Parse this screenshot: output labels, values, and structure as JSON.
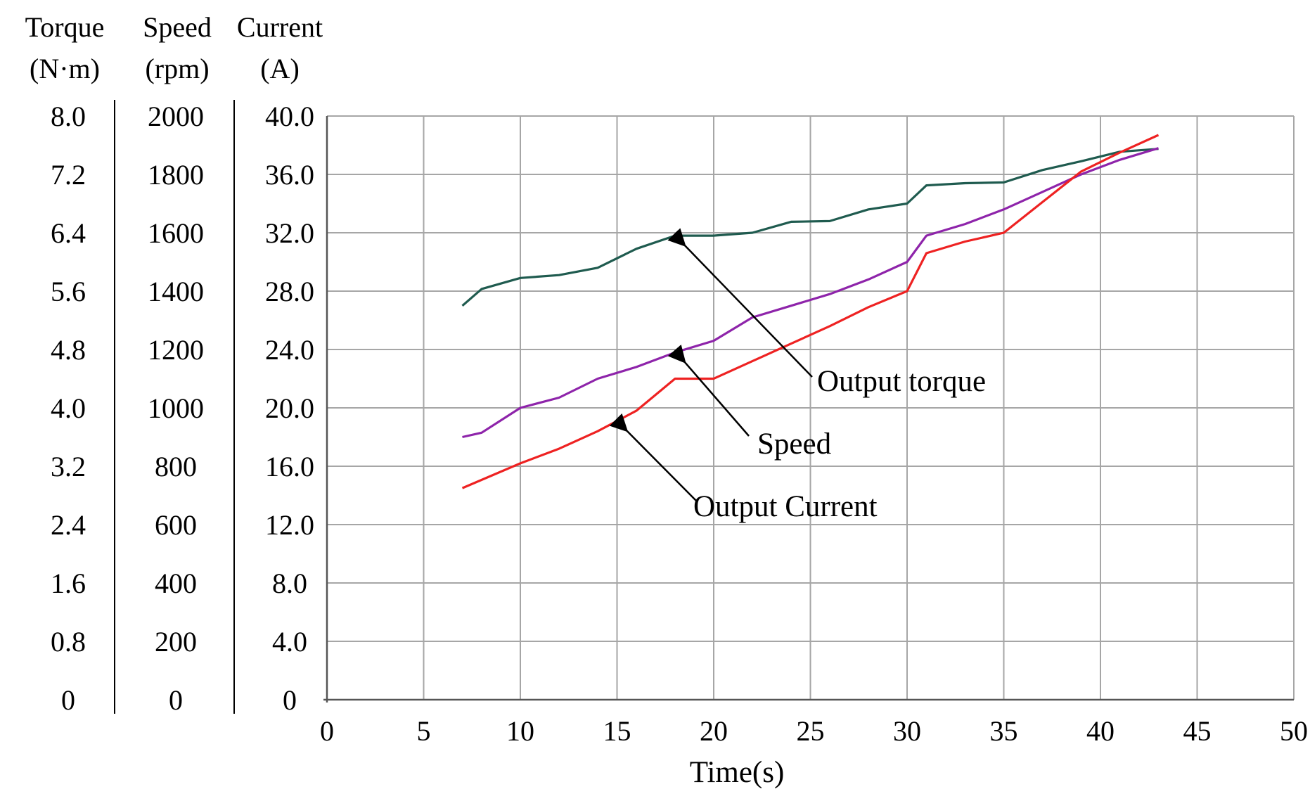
{
  "chart_data": {
    "type": "line",
    "xlabel": "Time(s)",
    "x_ticks": [
      "0",
      "5",
      "10",
      "15",
      "20",
      "25",
      "30",
      "35",
      "40",
      "45",
      "50"
    ],
    "xlim": [
      0,
      50
    ],
    "grid": true,
    "y_axes": [
      {
        "key": "torque",
        "label_line1": "Torque",
        "label_line2": "(N·m)",
        "ticks": [
          "8.0",
          "7.2",
          "6.4",
          "5.6",
          "4.8",
          "4.0",
          "3.2",
          "2.4",
          "1.6",
          "0.8",
          "0"
        ],
        "ylim": [
          0,
          8.0
        ]
      },
      {
        "key": "speed",
        "label_line1": "Speed",
        "label_line2": "(rpm)",
        "ticks": [
          "2000",
          "1800",
          "1600",
          "1400",
          "1200",
          "1000",
          "800",
          "600",
          "400",
          "200",
          "0"
        ],
        "ylim": [
          0,
          2000
        ]
      },
      {
        "key": "current",
        "label_line1": "Current",
        "label_line2": "(A)",
        "ticks": [
          "40.0",
          "36.0",
          "32.0",
          "28.0",
          "24.0",
          "20.0",
          "16.0",
          "12.0",
          "8.0",
          "4.0",
          "0"
        ],
        "ylim": [
          0,
          40.0
        ]
      }
    ],
    "series": [
      {
        "name": "Output torque",
        "axis": "torque",
        "color": "#1f5b4f",
        "x": [
          7,
          8,
          10,
          12,
          14,
          16,
          18,
          20,
          22,
          24,
          26,
          28,
          30,
          31,
          33,
          35,
          37,
          39,
          41,
          43
        ],
        "y": [
          5.4,
          5.63,
          5.78,
          5.82,
          5.92,
          6.18,
          6.36,
          6.36,
          6.4,
          6.55,
          6.56,
          6.72,
          6.8,
          7.05,
          7.08,
          7.09,
          7.26,
          7.38,
          7.51,
          7.55
        ]
      },
      {
        "name": "Speed",
        "axis": "speed",
        "color": "#8e24aa",
        "x": [
          7,
          8,
          10,
          12,
          14,
          16,
          18,
          20,
          22,
          24,
          26,
          28,
          30,
          31,
          33,
          35,
          37,
          39,
          41,
          43
        ],
        "y": [
          900,
          915,
          1000,
          1035,
          1100,
          1140,
          1190,
          1230,
          1310,
          1350,
          1390,
          1440,
          1500,
          1590,
          1630,
          1680,
          1740,
          1800,
          1850,
          1890
        ]
      },
      {
        "name": "Output Current",
        "axis": "current",
        "color": "#ee2222",
        "x": [
          7,
          10,
          12,
          14,
          16,
          18,
          20,
          22,
          24,
          26,
          28,
          30,
          31,
          33,
          35,
          37,
          39,
          41,
          43
        ],
        "y": [
          14.5,
          16.2,
          17.2,
          18.4,
          19.8,
          22.0,
          22.0,
          23.2,
          24.4,
          25.6,
          26.9,
          28.0,
          30.6,
          31.4,
          32.0,
          34.1,
          36.2,
          37.5,
          38.7
        ]
      }
    ],
    "annotations": [
      {
        "text": "Output torque",
        "series": "Output torque",
        "point_x": 18
      },
      {
        "text": "Speed",
        "series": "Speed",
        "point_x": 18
      },
      {
        "text": "Output Current",
        "series": "Output Current",
        "point_x": 15
      }
    ]
  }
}
